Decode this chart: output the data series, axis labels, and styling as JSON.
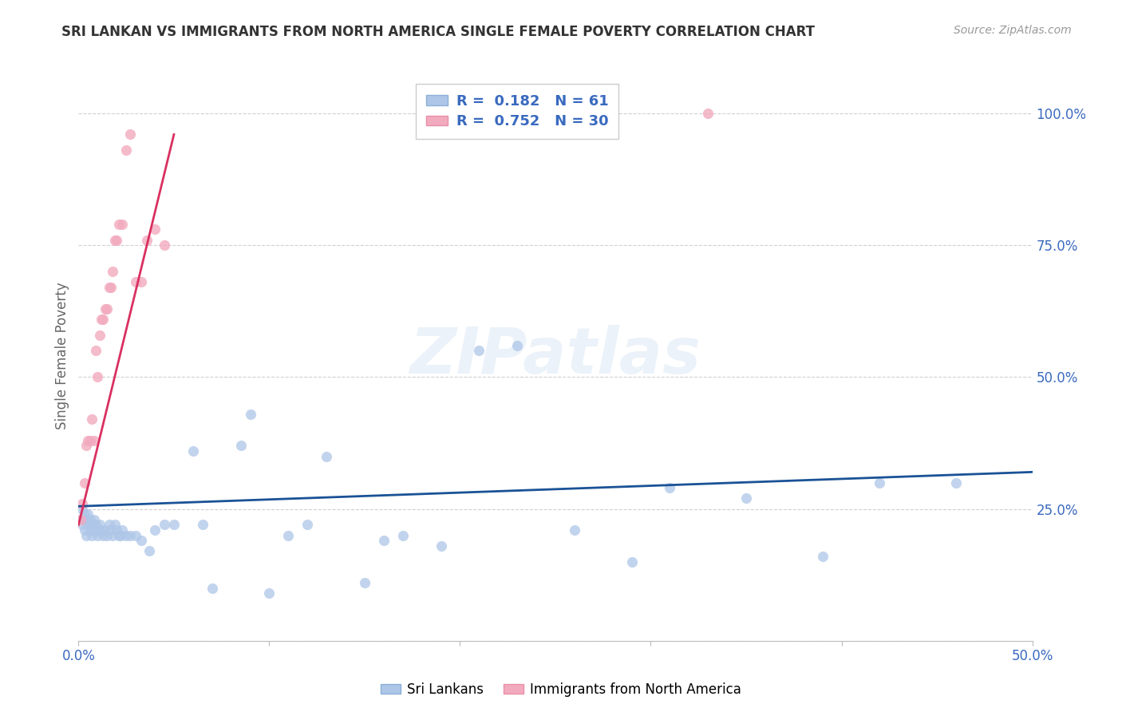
{
  "title": "SRI LANKAN VS IMMIGRANTS FROM NORTH AMERICA SINGLE FEMALE POVERTY CORRELATION CHART",
  "source": "Source: ZipAtlas.com",
  "ylabel": "Single Female Poverty",
  "right_yticks": [
    0.0,
    0.25,
    0.5,
    0.75,
    1.0
  ],
  "right_yticklabels": [
    "",
    "25.0%",
    "50.0%",
    "75.0%",
    "100.0%"
  ],
  "legend_blue": {
    "R": 0.182,
    "N": 61
  },
  "legend_pink": {
    "R": 0.752,
    "N": 30
  },
  "blue_color": "#aec6e8",
  "pink_color": "#f2aabe",
  "blue_line_color": "#1a5296",
  "pink_line_color": "#d93060",
  "blue_label": "Sri Lankans",
  "pink_label": "Immigrants from North America",
  "watermark_text": "ZIPatlas",
  "xlim": [
    0.0,
    0.5
  ],
  "ylim": [
    0.0,
    1.08
  ],
  "blue_x": [
    0.001,
    0.002,
    0.002,
    0.003,
    0.003,
    0.004,
    0.004,
    0.005,
    0.005,
    0.006,
    0.006,
    0.007,
    0.007,
    0.008,
    0.008,
    0.009,
    0.01,
    0.01,
    0.011,
    0.012,
    0.013,
    0.014,
    0.015,
    0.016,
    0.017,
    0.018,
    0.019,
    0.02,
    0.021,
    0.022,
    0.023,
    0.025,
    0.027,
    0.03,
    0.033,
    0.037,
    0.04,
    0.045,
    0.05,
    0.06,
    0.065,
    0.07,
    0.085,
    0.09,
    0.1,
    0.11,
    0.12,
    0.13,
    0.15,
    0.16,
    0.17,
    0.19,
    0.21,
    0.23,
    0.26,
    0.29,
    0.31,
    0.35,
    0.39,
    0.42,
    0.46
  ],
  "blue_y": [
    0.23,
    0.25,
    0.22,
    0.24,
    0.21,
    0.23,
    0.2,
    0.22,
    0.24,
    0.21,
    0.23,
    0.22,
    0.2,
    0.21,
    0.23,
    0.22,
    0.21,
    0.2,
    0.22,
    0.21,
    0.2,
    0.21,
    0.2,
    0.22,
    0.21,
    0.2,
    0.22,
    0.21,
    0.2,
    0.2,
    0.21,
    0.2,
    0.2,
    0.2,
    0.19,
    0.17,
    0.21,
    0.22,
    0.22,
    0.36,
    0.22,
    0.1,
    0.37,
    0.43,
    0.09,
    0.2,
    0.22,
    0.35,
    0.11,
    0.19,
    0.2,
    0.18,
    0.55,
    0.56,
    0.21,
    0.15,
    0.29,
    0.27,
    0.16,
    0.3,
    0.3
  ],
  "pink_x": [
    0.001,
    0.002,
    0.003,
    0.004,
    0.005,
    0.006,
    0.007,
    0.008,
    0.009,
    0.01,
    0.011,
    0.012,
    0.013,
    0.014,
    0.015,
    0.016,
    0.017,
    0.018,
    0.019,
    0.02,
    0.021,
    0.023,
    0.025,
    0.027,
    0.03,
    0.033,
    0.036,
    0.04,
    0.045,
    0.33
  ],
  "pink_y": [
    0.23,
    0.26,
    0.3,
    0.37,
    0.38,
    0.38,
    0.42,
    0.38,
    0.55,
    0.5,
    0.58,
    0.61,
    0.61,
    0.63,
    0.63,
    0.67,
    0.67,
    0.7,
    0.76,
    0.76,
    0.79,
    0.79,
    0.93,
    0.96,
    0.68,
    0.68,
    0.76,
    0.78,
    0.75,
    1.0
  ]
}
